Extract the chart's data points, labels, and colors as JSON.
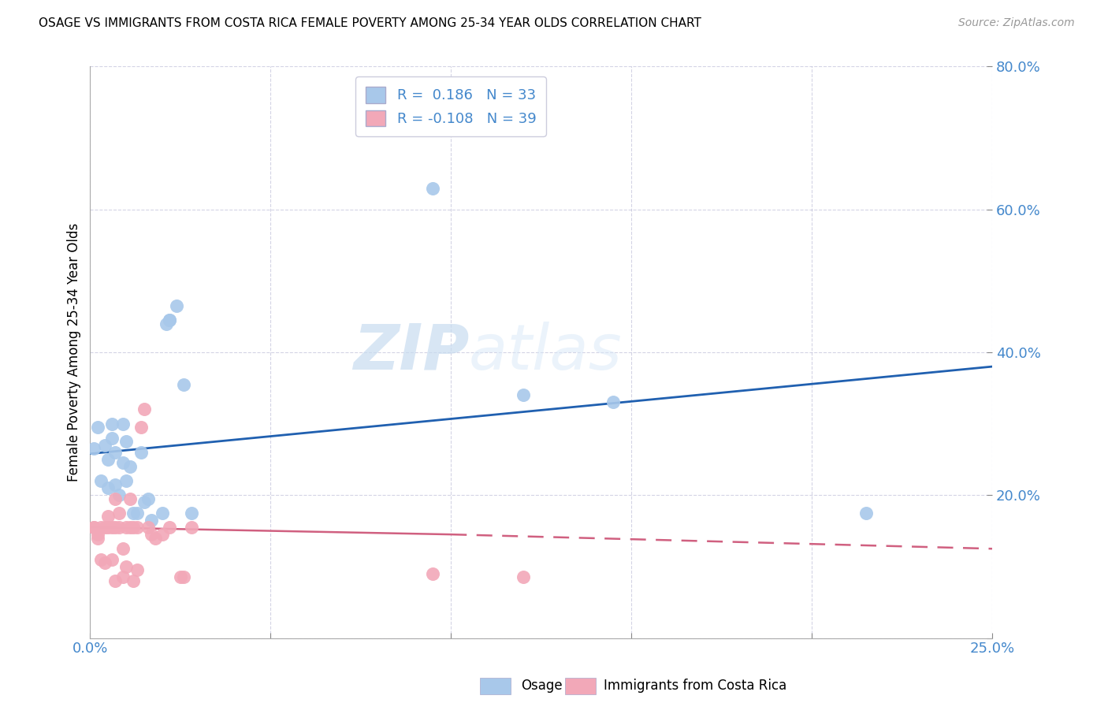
{
  "title": "OSAGE VS IMMIGRANTS FROM COSTA RICA FEMALE POVERTY AMONG 25-34 YEAR OLDS CORRELATION CHART",
  "source": "Source: ZipAtlas.com",
  "ylabel": "Female Poverty Among 25-34 Year Olds",
  "xlim": [
    0,
    0.25
  ],
  "ylim": [
    0,
    0.8
  ],
  "R_blue": 0.186,
  "N_blue": 33,
  "R_pink": -0.108,
  "N_pink": 39,
  "blue_color": "#A8C8EA",
  "pink_color": "#F2A8B8",
  "trend_blue": "#2060B0",
  "trend_pink": "#D06080",
  "legend_label_blue": "Osage",
  "legend_label_pink": "Immigrants from Costa Rica",
  "watermark_zip": "ZIP",
  "watermark_atlas": "atlas",
  "blue_points_x": [
    0.001,
    0.002,
    0.003,
    0.004,
    0.005,
    0.005,
    0.006,
    0.006,
    0.007,
    0.007,
    0.008,
    0.009,
    0.009,
    0.01,
    0.01,
    0.011,
    0.012,
    0.013,
    0.014,
    0.015,
    0.016,
    0.017,
    0.02,
    0.021,
    0.022,
    0.022,
    0.024,
    0.026,
    0.028,
    0.095,
    0.12,
    0.145,
    0.215
  ],
  "blue_points_y": [
    0.265,
    0.295,
    0.22,
    0.27,
    0.21,
    0.25,
    0.28,
    0.3,
    0.26,
    0.215,
    0.2,
    0.245,
    0.3,
    0.275,
    0.22,
    0.24,
    0.175,
    0.175,
    0.26,
    0.19,
    0.195,
    0.165,
    0.175,
    0.44,
    0.445,
    0.445,
    0.465,
    0.355,
    0.175,
    0.63,
    0.34,
    0.33,
    0.175
  ],
  "pink_points_x": [
    0.001,
    0.001,
    0.002,
    0.002,
    0.003,
    0.003,
    0.004,
    0.004,
    0.005,
    0.005,
    0.006,
    0.006,
    0.007,
    0.007,
    0.007,
    0.008,
    0.008,
    0.009,
    0.009,
    0.01,
    0.01,
    0.011,
    0.011,
    0.012,
    0.012,
    0.013,
    0.013,
    0.014,
    0.015,
    0.016,
    0.017,
    0.018,
    0.02,
    0.022,
    0.025,
    0.026,
    0.028,
    0.095,
    0.12
  ],
  "pink_points_y": [
    0.155,
    0.155,
    0.14,
    0.145,
    0.155,
    0.11,
    0.155,
    0.105,
    0.155,
    0.17,
    0.11,
    0.155,
    0.195,
    0.08,
    0.155,
    0.155,
    0.175,
    0.125,
    0.085,
    0.1,
    0.155,
    0.195,
    0.155,
    0.155,
    0.08,
    0.155,
    0.095,
    0.295,
    0.32,
    0.155,
    0.145,
    0.14,
    0.145,
    0.155,
    0.085,
    0.085,
    0.155,
    0.09,
    0.085
  ],
  "trend_blue_x0": 0.0,
  "trend_blue_y0": 0.258,
  "trend_blue_x1": 0.25,
  "trend_blue_y1": 0.38,
  "trend_pink_solid_x0": 0.0,
  "trend_pink_solid_y0": 0.155,
  "trend_pink_solid_x1": 0.1,
  "trend_pink_solid_y1": 0.145,
  "trend_pink_dash_x0": 0.1,
  "trend_pink_dash_y0": 0.145,
  "trend_pink_dash_x1": 0.25,
  "trend_pink_dash_y1": 0.125
}
